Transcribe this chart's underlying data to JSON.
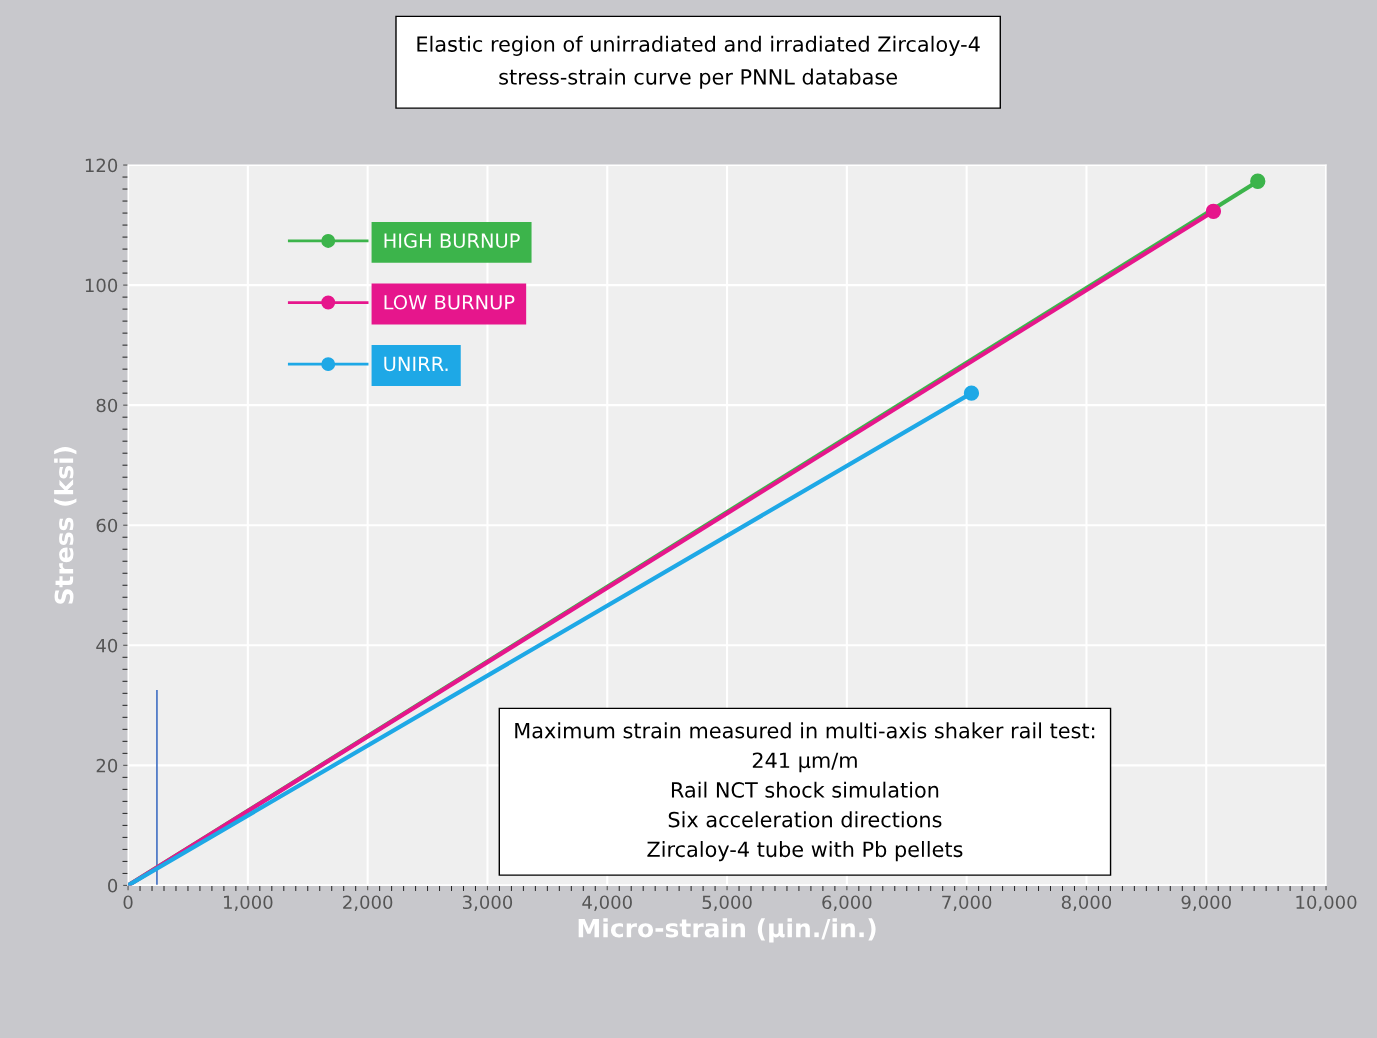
{
  "chart_data": {
    "type": "line",
    "title": "Elastic region of unirradiated and irradiated Zircaloy-4\nstress-strain curve per PNNL database",
    "xlabel": "Micro-strain (µin./in.)",
    "ylabel": "Stress (ksi)",
    "series": [
      {
        "name": "HIGH BURNUP",
        "color": "#3cb44b",
        "x": [
          0,
          9430
        ],
        "values": [
          0,
          117.3
        ]
      },
      {
        "name": "LOW BURNUP",
        "color": "#e6168c",
        "x": [
          0,
          9060
        ],
        "values": [
          0,
          112.3
        ]
      },
      {
        "name": "UNIRR.",
        "color": "#1ea8e6",
        "x": [
          0,
          7040
        ],
        "values": [
          0,
          82
        ]
      }
    ],
    "xlim": [
      0,
      10000
    ],
    "xticks": [
      0,
      {
        "value": 1000,
        "label": "1,000"
      },
      {
        "value": 2000,
        "label": "2,000"
      },
      {
        "value": 3000,
        "label": "3,000"
      },
      {
        "value": 4000,
        "label": "4,000"
      },
      {
        "value": 5000,
        "label": "5,000"
      },
      {
        "value": 6000,
        "label": "6,000"
      },
      {
        "value": 7000,
        "label": "7,000"
      },
      {
        "value": 8000,
        "label": "8,000"
      },
      {
        "value": 9000,
        "label": "9,000"
      },
      {
        "value": 10000,
        "label": "10,000"
      }
    ],
    "ylim": [
      0,
      120
    ],
    "yticks": [
      0,
      20,
      40,
      60,
      80,
      100,
      120
    ],
    "ref_lines": [
      {
        "axis": "x",
        "value": 241,
        "color": "#4472c4"
      }
    ],
    "annotations": [
      "Maximum strain measured in multi-axis shaker rail test:\n241 µm/m\nRail NCT shock simulation\nSix acceleration directions\nZircaloy-4 tube with Pb pellets"
    ],
    "grid": true,
    "legend": "top left",
    "marker": "circle",
    "line_style": "solid"
  }
}
